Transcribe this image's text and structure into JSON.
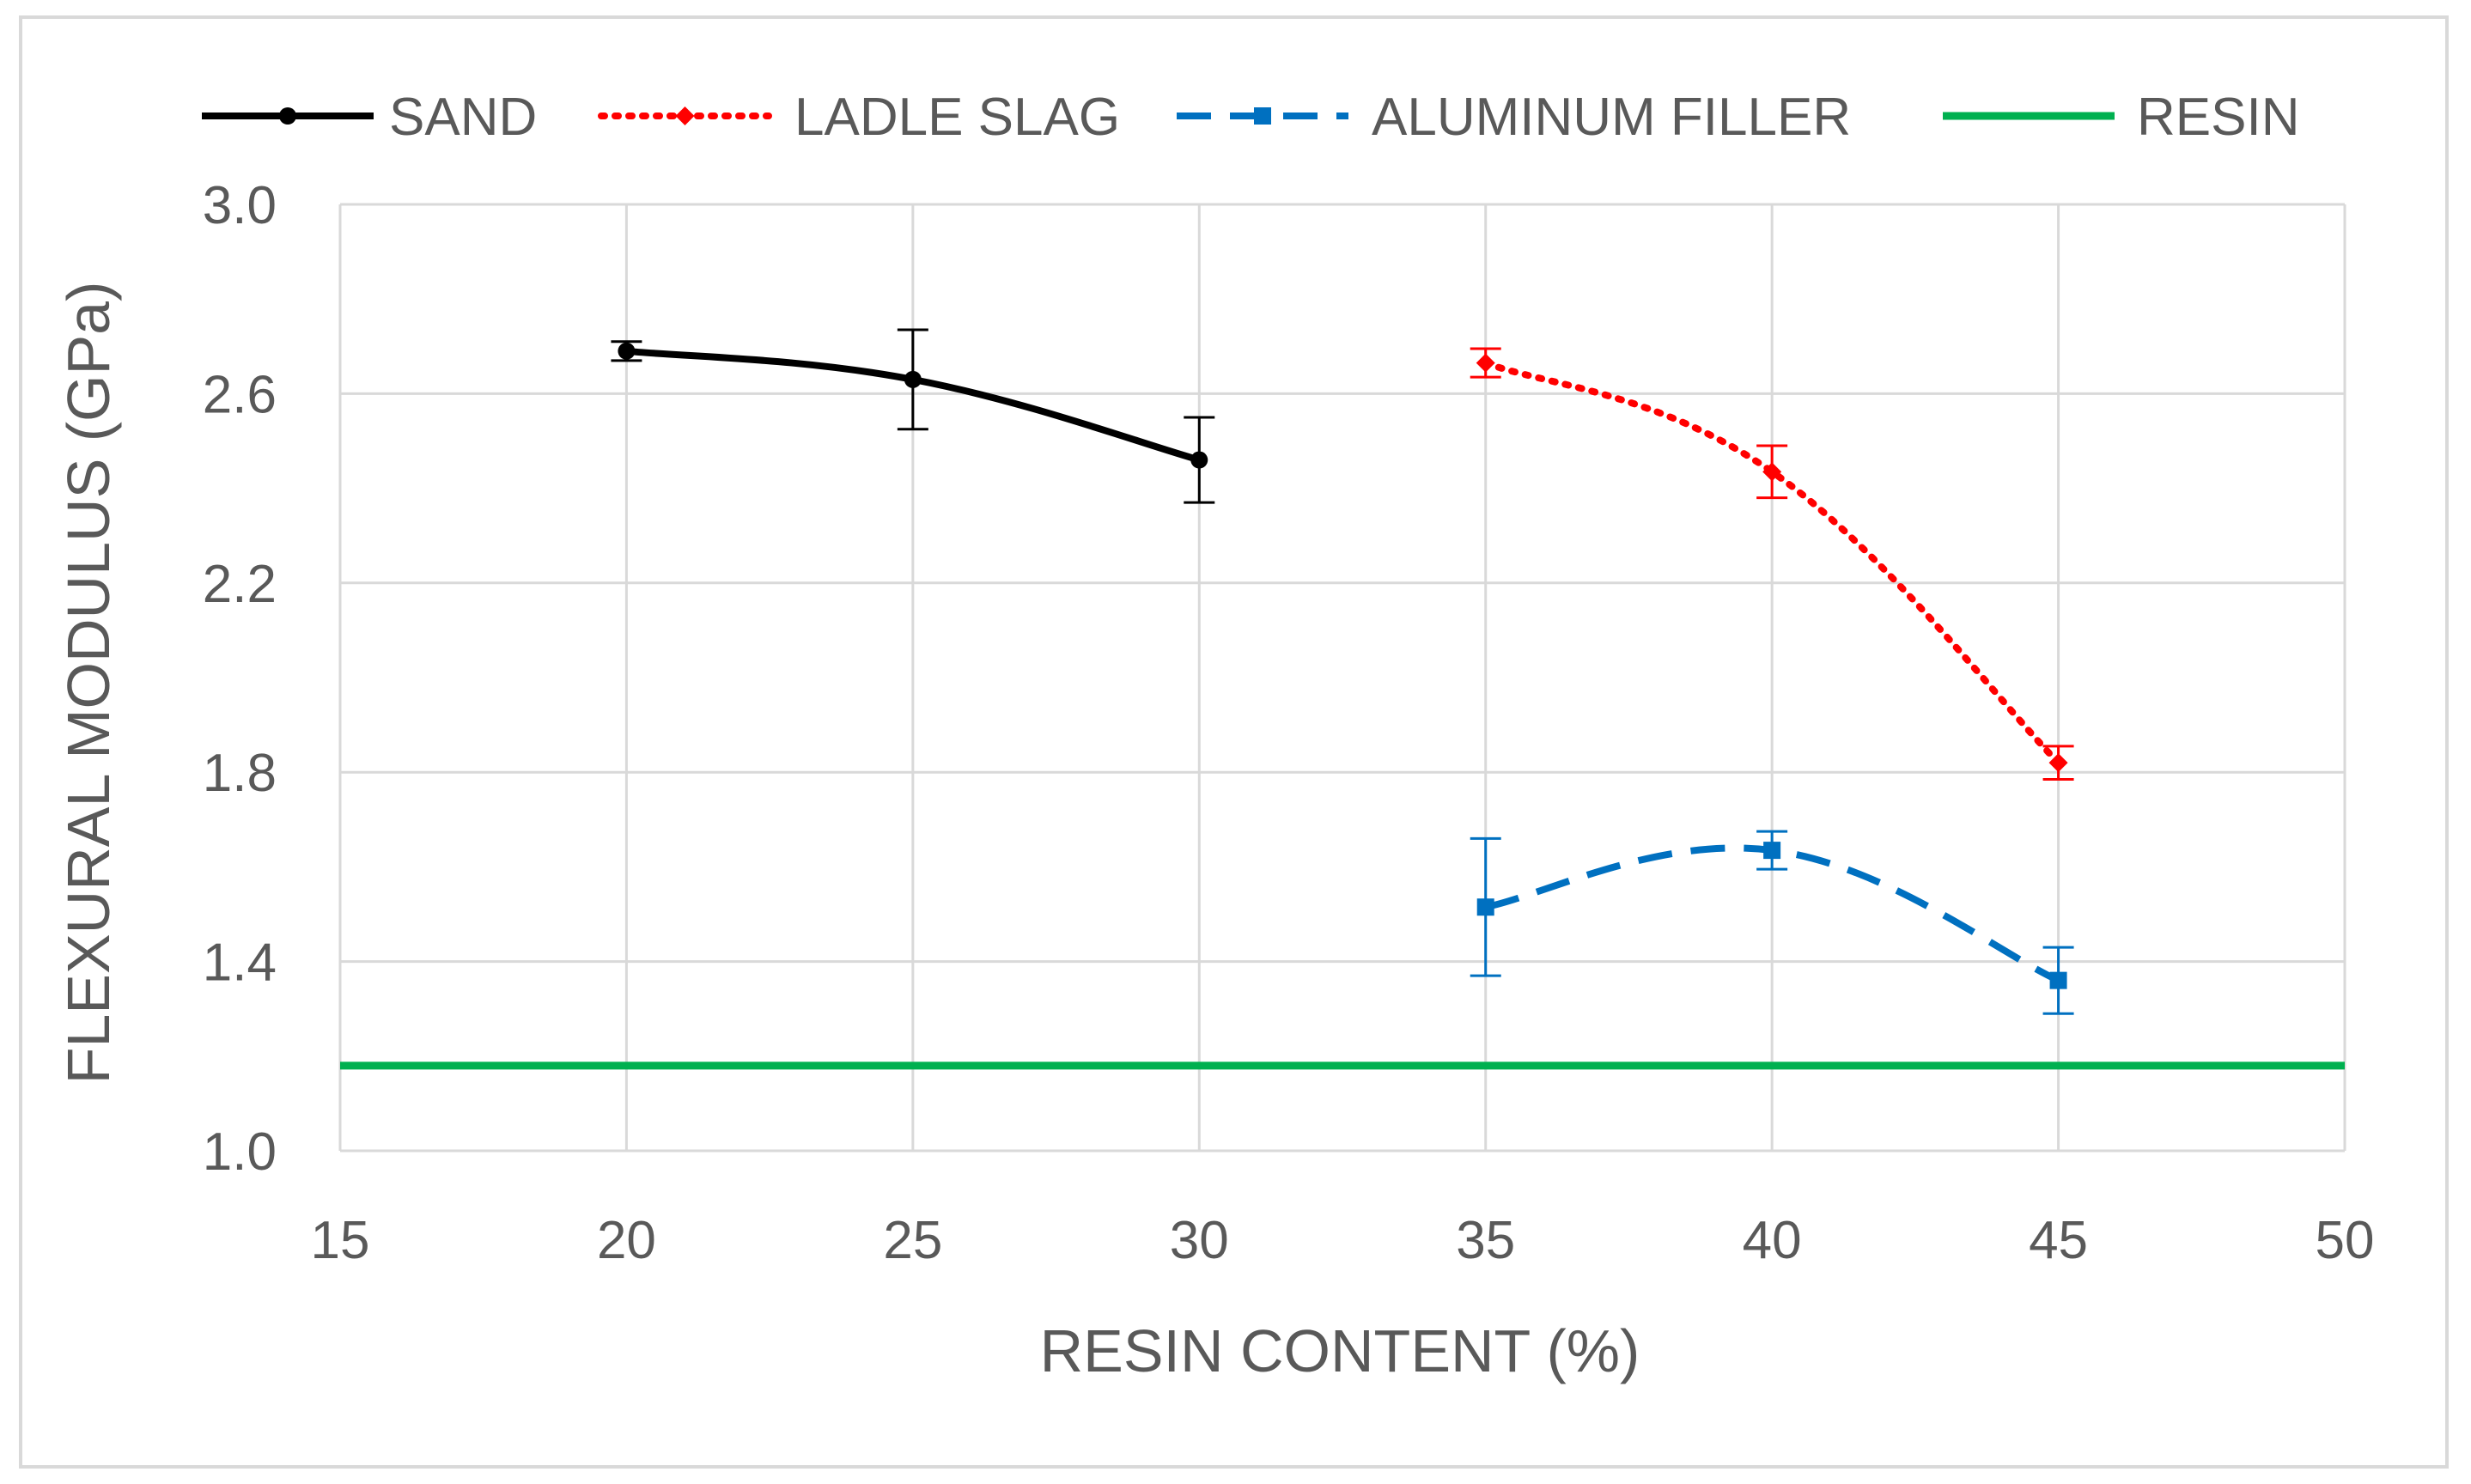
{
  "chart_data": {
    "type": "line",
    "xlabel": "RESIN CONTENT (%)",
    "ylabel": "FLEXURAL MODULUS (GPa)",
    "xlim": [
      15,
      50
    ],
    "ylim": [
      1.0,
      3.0
    ],
    "x_ticks": [
      "15",
      "20",
      "25",
      "30",
      "35",
      "40",
      "45",
      "50"
    ],
    "y_ticks": [
      "1.0",
      "1.4",
      "1.8",
      "2.2",
      "2.6",
      "3.0"
    ],
    "grid": true,
    "legend_position": "top",
    "series": [
      {
        "name": "SAND",
        "color": "#000000",
        "line_style": "solid",
        "marker": "circle",
        "x": [
          20,
          25,
          30
        ],
        "y": [
          2.69,
          2.63,
          2.46
        ],
        "error": [
          0.02,
          0.105,
          0.09
        ]
      },
      {
        "name": "LADLE SLAG",
        "color": "#ff0000",
        "line_style": "dotted",
        "marker": "diamond",
        "x": [
          35,
          40,
          45
        ],
        "y": [
          2.665,
          2.435,
          1.82
        ],
        "error": [
          0.03,
          0.055,
          0.035
        ]
      },
      {
        "name": "ALUMINUM FILLER",
        "color": "#0070c0",
        "line_style": "dashed",
        "marker": "square",
        "x": [
          35,
          40,
          45
        ],
        "y": [
          1.515,
          1.635,
          1.36
        ],
        "error": [
          0.145,
          0.04,
          0.07
        ]
      },
      {
        "name": "RESIN",
        "color": "#00b050",
        "line_style": "solid",
        "marker": "none",
        "x": [
          15,
          50
        ],
        "y": [
          1.18,
          1.18
        ]
      }
    ]
  }
}
